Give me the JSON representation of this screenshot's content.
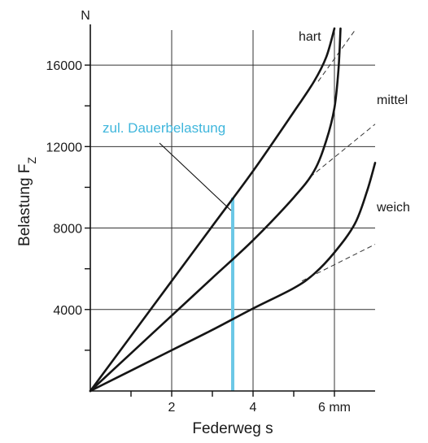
{
  "chart_data": {
    "type": "line",
    "title": "",
    "xlabel": "Federweg s",
    "ylabel": "Belastung F",
    "ylabel_subscript": "Z",
    "y_unit": "N",
    "xlim": [
      0,
      7
    ],
    "ylim": [
      0,
      17800
    ],
    "x_grid": [
      2,
      4,
      6
    ],
    "y_grid": [
      4000,
      8000,
      12000,
      16000
    ],
    "x_minor_ticks": [
      1,
      3,
      5
    ],
    "y_minor_ticks": [
      2000,
      6000,
      10000,
      14000
    ],
    "x_tick_labels": [
      {
        "value": 2,
        "label": "2"
      },
      {
        "value": 4,
        "label": "4"
      },
      {
        "value": 6,
        "label": "6 mm"
      }
    ],
    "y_tick_labels": [
      {
        "value": 4000,
        "label": "4000"
      },
      {
        "value": 8000,
        "label": "8000"
      },
      {
        "value": 12000,
        "label": "12000"
      },
      {
        "value": 16000,
        "label": "16000"
      }
    ],
    "series": [
      {
        "name": "hart",
        "x": [
          0,
          1,
          2,
          3,
          4,
          5,
          5.5,
          5.8,
          6.0
        ],
        "y": [
          0,
          2700,
          5400,
          8100,
          10800,
          13700,
          15200,
          16400,
          17800
        ]
      },
      {
        "name": "mittel",
        "x": [
          0,
          1,
          2,
          3,
          4,
          5,
          5.5,
          5.8,
          6.0,
          6.1,
          6.15
        ],
        "y": [
          0,
          1850,
          3700,
          5550,
          7400,
          9500,
          10800,
          12300,
          13900,
          15800,
          17800
        ]
      },
      {
        "name": "weich",
        "x": [
          0,
          1,
          2,
          3,
          4,
          5,
          5.5,
          6.0,
          6.5,
          6.8,
          7.0
        ],
        "y": [
          0,
          1000,
          2000,
          3000,
          4050,
          5050,
          5750,
          6800,
          8200,
          9800,
          11200
        ]
      }
    ],
    "tangents": [
      {
        "series": "hart",
        "x": [
          5.6,
          6.5
        ],
        "y": [
          15200,
          17700
        ]
      },
      {
        "series": "mittel",
        "x": [
          5.4,
          7.0
        ],
        "y": [
          10500,
          13100
        ]
      },
      {
        "series": "weich",
        "x": [
          5.2,
          7.0
        ],
        "y": [
          5400,
          7200
        ]
      }
    ],
    "annotation": {
      "text": "zul. Dauerbelastung",
      "x": 3.5,
      "y_from": 0,
      "y_to": 9500,
      "color": "#6cc8e6"
    },
    "grid": true,
    "legend": "labels beside curves"
  }
}
